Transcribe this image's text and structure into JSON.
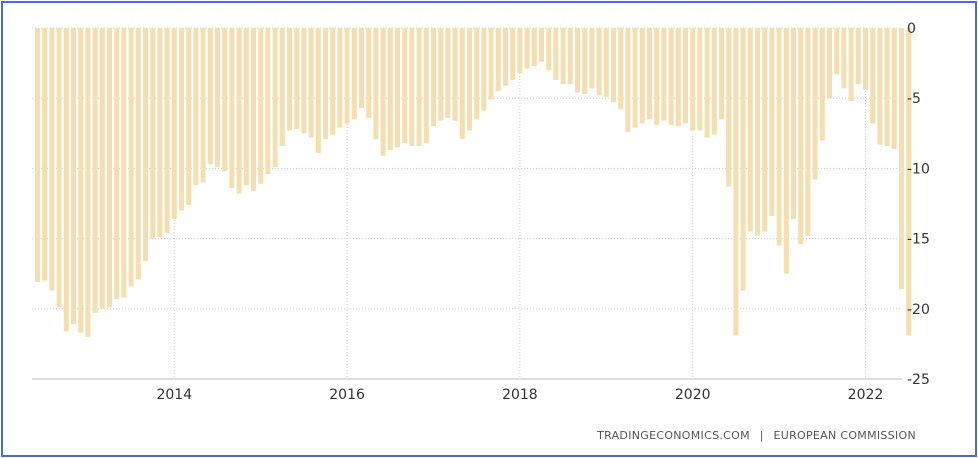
{
  "source": {
    "left": "TRADINGECONOMICS.COM",
    "sep": "|",
    "right": "EUROPEAN COMMISSION"
  },
  "colors": {
    "bar": "#f5deb0",
    "grid": "#cccccc",
    "border": "#4472c4",
    "text": "#333333"
  },
  "chart_data": {
    "type": "bar",
    "title": "",
    "xlabel": "",
    "ylabel": "",
    "ylim": [
      -25,
      0
    ],
    "yticks": [
      0,
      -5,
      -10,
      -15,
      -20,
      -25
    ],
    "ytick_labels": [
      "0",
      "-5",
      "-10",
      "-15",
      "-20",
      "-25"
    ],
    "xticks": [
      "2014",
      "2016",
      "2018",
      "2020",
      "2022"
    ],
    "y_axis_side": "right",
    "grid": true,
    "legend": "none",
    "x_start": "2012-06",
    "frequency": "monthly",
    "values": [
      -18.1,
      -18.0,
      -18.7,
      -19.9,
      -21.6,
      -21.1,
      -21.7,
      -22.0,
      -20.3,
      -20.0,
      -19.9,
      -19.3,
      -19.2,
      -18.4,
      -17.9,
      -16.6,
      -15.0,
      -14.9,
      -14.6,
      -13.6,
      -13.0,
      -12.6,
      -11.2,
      -11.0,
      -9.7,
      -9.9,
      -10.2,
      -11.4,
      -11.8,
      -11.2,
      -11.6,
      -11.1,
      -10.4,
      -9.9,
      -8.4,
      -7.3,
      -7.2,
      -7.5,
      -7.8,
      -8.9,
      -7.9,
      -7.6,
      -7.1,
      -6.8,
      -6.5,
      -5.7,
      -6.4,
      -7.9,
      -9.1,
      -8.7,
      -8.5,
      -8.2,
      -8.4,
      -8.4,
      -8.2,
      -7.0,
      -6.6,
      -6.4,
      -6.6,
      -7.9,
      -7.3,
      -6.5,
      -5.9,
      -5.1,
      -4.5,
      -4.1,
      -3.7,
      -3.2,
      -2.9,
      -2.7,
      -2.4,
      -3.0,
      -3.7,
      -4.0,
      -4.0,
      -4.6,
      -4.7,
      -4.3,
      -4.8,
      -4.9,
      -5.3,
      -5.8,
      -7.4,
      -7.1,
      -6.8,
      -6.5,
      -6.9,
      -6.6,
      -6.9,
      -7.0,
      -6.8,
      -7.3,
      -7.3,
      -7.8,
      -7.6,
      -6.5,
      -11.3,
      -21.9,
      -18.7,
      -14.5,
      -14.8,
      -14.5,
      -13.4,
      -15.5,
      -17.5,
      -13.6,
      -15.4,
      -14.8,
      -10.8,
      -8.0,
      -5.0,
      -3.3,
      -4.3,
      -5.2,
      -4.0,
      -4.4,
      -6.8,
      -8.3,
      -8.4,
      -8.6,
      -18.6,
      -21.9
    ]
  }
}
